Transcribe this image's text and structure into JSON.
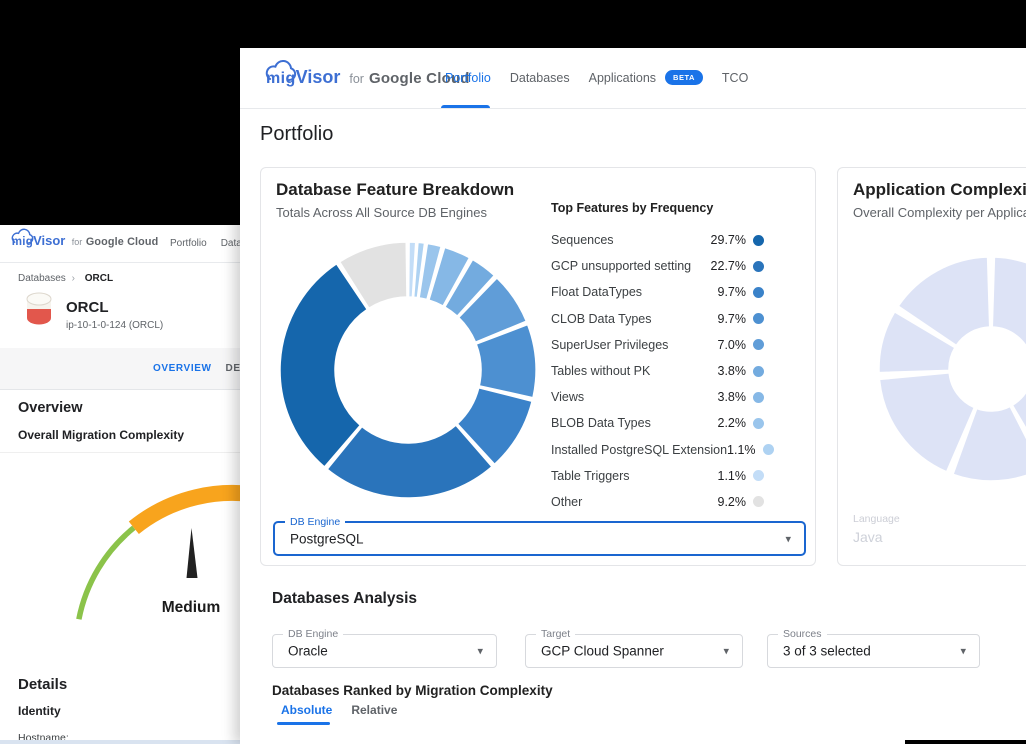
{
  "brand": {
    "mig": "mig",
    "visor": "Visor",
    "for_word": "for",
    "product": "Google Cloud"
  },
  "icons": {
    "caret": "▾",
    "breadcrumb_separator": "›"
  },
  "colors": {
    "accent_blue": "#1a73e8",
    "logo_blue": "#3d6fd3",
    "gauge_green": "#8bc34a",
    "gauge_orange": "#f8a41d",
    "faded_lavender": "#dde3f6"
  },
  "front_window": {
    "nav_tabs": [
      {
        "label": "Portfolio",
        "active": true
      },
      {
        "label": "Databases",
        "active": false
      },
      {
        "label": "Applications",
        "active": false,
        "badge": "BETA"
      },
      {
        "label": "TCO",
        "active": false
      }
    ],
    "page_title": "Portfolio",
    "feature_card": {
      "title": "Database Feature Breakdown",
      "subtitle": "Totals Across All Source DB Engines",
      "list_title": "Top Features by Frequency",
      "features": [
        {
          "name": "Sequences",
          "pct": "29.7%",
          "color": "#1566ac"
        },
        {
          "name": "GCP unsupported setting",
          "pct": "22.7%",
          "color": "#2a74bb"
        },
        {
          "name": "Float DataTypes",
          "pct": "9.7%",
          "color": "#3a82c9"
        },
        {
          "name": "CLOB Data Types",
          "pct": "9.7%",
          "color": "#4d90d1"
        },
        {
          "name": "SuperUser Privileges",
          "pct": "7.0%",
          "color": "#609dd8"
        },
        {
          "name": "Tables without PK",
          "pct": "3.8%",
          "color": "#73abdf"
        },
        {
          "name": "Views",
          "pct": "3.8%",
          "color": "#86b8e6"
        },
        {
          "name": "BLOB Data Types",
          "pct": "2.2%",
          "color": "#9ac5ec"
        },
        {
          "name": "Installed PostgreSQL Extension",
          "pct": "1.1%",
          "color": "#aed2f2"
        },
        {
          "name": "Table Triggers",
          "pct": "1.1%",
          "color": "#c3ddf7"
        },
        {
          "name": "Other",
          "pct": "9.2%",
          "color": "#e2e2e2"
        }
      ],
      "db_engine_select": {
        "label": "DB Engine",
        "value": "PostgreSQL"
      }
    },
    "app_card": {
      "title": "Application Complexity Breakdown",
      "subtitle": "Overall Complexity per Application",
      "language_select": {
        "label": "Language",
        "value": "Java"
      }
    },
    "analysis": {
      "title": "Databases Analysis",
      "selects": [
        {
          "label": "DB Engine",
          "value": "Oracle"
        },
        {
          "label": "Target",
          "value": "GCP Cloud Spanner"
        },
        {
          "label": "Sources",
          "value": "3 of 3 selected"
        }
      ],
      "ranked_title": "Databases Ranked by Migration Complexity",
      "rank_tabs": [
        {
          "label": "Absolute",
          "active": true
        },
        {
          "label": "Relative",
          "active": false
        }
      ]
    }
  },
  "back_window": {
    "nav_tabs": [
      {
        "label": "Portfolio",
        "active": false
      },
      {
        "label": "Databases",
        "active": false
      }
    ],
    "breadcrumb": {
      "parent": "Databases",
      "separator": "›",
      "current": "ORCL"
    },
    "database": {
      "name": "ORCL",
      "host": "ip-10-1-0-124 (ORCL)"
    },
    "tabs": [
      {
        "label": "OVERVIEW",
        "active": true
      },
      {
        "label": "DETAILS",
        "active": false
      }
    ],
    "overview_heading": "Overview",
    "complexity_heading": "Overall Migration Complexity",
    "details_heading": "Details",
    "identity_heading": "Identity",
    "hostname_label": "Hostname:"
  },
  "chart_data": [
    {
      "id": "db-feature-donut",
      "type": "pie",
      "style": "donut",
      "title": "Database Feature Breakdown",
      "pad_max": 1.6,
      "start_angle": 0,
      "order_note": "clockwise from 12 o'clock",
      "segments": [
        {
          "label": "Table Triggers",
          "value": 1.1,
          "color": "#c3ddf7"
        },
        {
          "label": "Installed PostgreSQL Extension",
          "value": 1.1,
          "color": "#aed2f2"
        },
        {
          "label": "BLOB Data Types",
          "value": 2.2,
          "color": "#9ac5ec"
        },
        {
          "label": "Views",
          "value": 3.8,
          "color": "#86b8e6"
        },
        {
          "label": "Tables without PK",
          "value": 3.8,
          "color": "#73abdf"
        },
        {
          "label": "SuperUser Privileges",
          "value": 7.0,
          "color": "#609dd8"
        },
        {
          "label": "CLOB Data Types",
          "value": 9.7,
          "color": "#4d90d1"
        },
        {
          "label": "Float DataTypes",
          "value": 9.7,
          "color": "#3a82c9"
        },
        {
          "label": "GCP unsupported setting",
          "value": 22.7,
          "color": "#2a74bb"
        },
        {
          "label": "Sequences",
          "value": 29.7,
          "color": "#1566ac"
        },
        {
          "label": "Other",
          "value": 9.2,
          "color": "#e2e2e2"
        }
      ]
    },
    {
      "id": "app-complexity-donut",
      "type": "pie",
      "style": "donut",
      "title": "Application Complexity Breakdown",
      "state": "faded",
      "pad_max": 3.5,
      "start_angle": 0,
      "segments": [
        {
          "label": "segment-1",
          "value": 21,
          "color": "#dde3f6"
        },
        {
          "label": "segment-2",
          "value": 21,
          "color": "#dde3f6"
        },
        {
          "label": "segment-3",
          "value": 14,
          "color": "#dde3f6"
        },
        {
          "label": "segment-4",
          "value": 18,
          "color": "#dde3f6"
        },
        {
          "label": "segment-5",
          "value": 10,
          "color": "#dde3f6"
        },
        {
          "label": "segment-6",
          "value": 16,
          "color": "#dde3f6"
        }
      ]
    },
    {
      "id": "migration-complexity-gauge",
      "type": "gauge",
      "value": "Medium",
      "scale_zones": [
        {
          "label": "Low",
          "color": "#8bc34a",
          "start_deg": 281,
          "end_deg": 321,
          "band_width": 5.5
        },
        {
          "label": "Medium",
          "color": "#f8a41d",
          "start_deg": 321,
          "end_deg": 430,
          "band_width": 16
        }
      ]
    }
  ]
}
